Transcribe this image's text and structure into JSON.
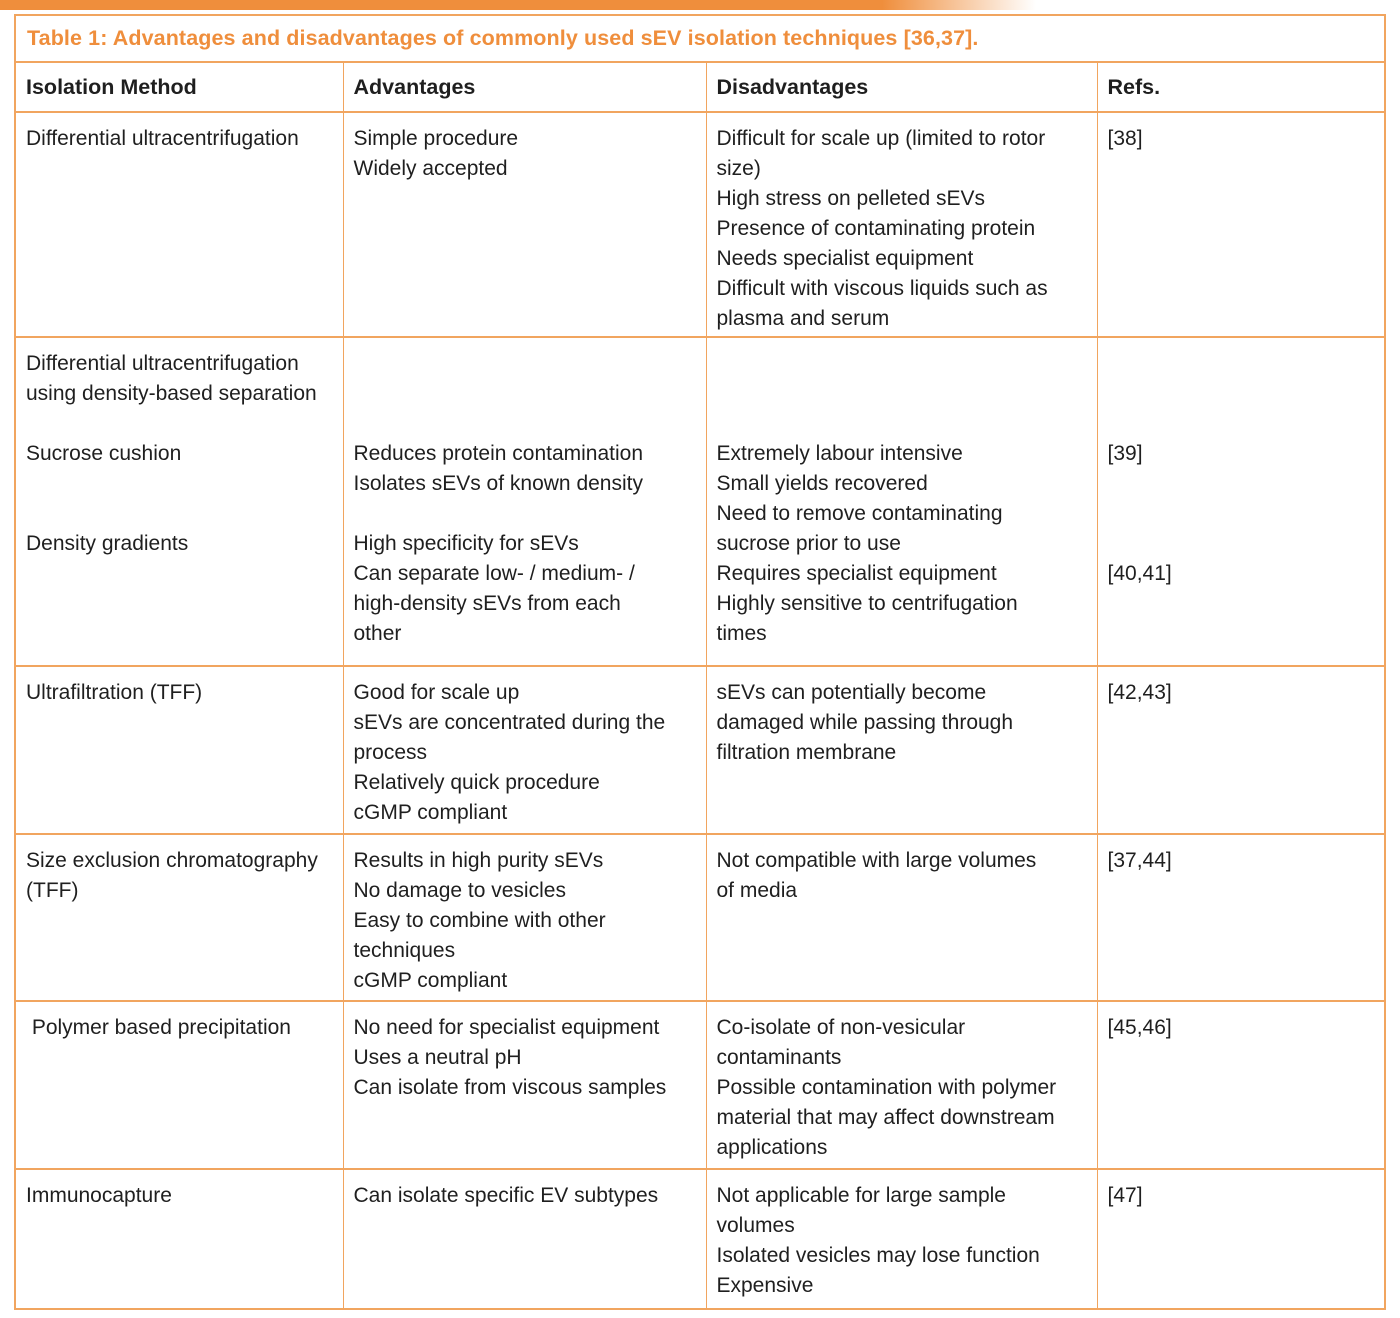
{
  "page": {
    "accent_color": "#EF8E3C",
    "border_color": "#F1A55F",
    "background": "#ffffff"
  },
  "table": {
    "title": "Table 1: Advantages and disadvantages of commonly used sEV isolation techniques [36,37].",
    "columns": [
      "Isolation Method",
      "Advantages",
      "Disadvantages",
      "Refs."
    ],
    "rows": [
      {
        "id": "differential-ultracentrifugation",
        "method": [
          "Differential ultracentrifugation"
        ],
        "advantages": [
          "Simple procedure",
          "Widely accepted"
        ],
        "disadvantages": [
          "Difficult for scale up (limited to rotor",
          "size)",
          "High stress on pelleted sEVs",
          "Presence of contaminating protein",
          "Needs specialist equipment",
          "Difficult with viscous liquids such as",
          "plasma and serum"
        ],
        "refs": [
          "[38]"
        ]
      },
      {
        "id": "density-based-separation",
        "method": [
          "Differential ultracentrifugation",
          "using density-based separation",
          "",
          "Sucrose cushion",
          "",
          "",
          "Density gradients"
        ],
        "advantages": [
          "",
          "",
          "",
          "Reduces protein contamination",
          "Isolates sEVs of known density",
          "",
          "High specificity for sEVs",
          "Can separate low- / medium- /",
          "high-density sEVs from each",
          "other"
        ],
        "disadvantages": [
          "",
          "",
          "",
          "Extremely labour intensive",
          "Small yields recovered",
          "Need to remove contaminating",
          "sucrose prior to use",
          "Requires specialist equipment",
          "Highly sensitive to centrifugation",
          "times"
        ],
        "refs": [
          "",
          "",
          "",
          "[39]",
          "",
          "",
          "",
          "[40,41]"
        ]
      },
      {
        "id": "ultrafiltration-tff",
        "method": [
          "Ultrafiltration (TFF)"
        ],
        "advantages": [
          "Good for scale up",
          "sEVs are concentrated during the",
          "process",
          "Relatively quick procedure",
          "cGMP compliant"
        ],
        "disadvantages": [
          "sEVs can potentially become",
          "damaged while passing through",
          "filtration membrane"
        ],
        "refs": [
          "[42,43]"
        ]
      },
      {
        "id": "size-exclusion-chromatography",
        "method": [
          "Size exclusion chromatography",
          "(TFF)"
        ],
        "advantages": [
          "Results in high purity sEVs",
          "No damage to vesicles",
          "Easy to combine with other",
          "techniques",
          "cGMP compliant"
        ],
        "disadvantages": [
          "Not compatible with large volumes",
          "of media"
        ],
        "refs": [
          "[37,44]"
        ]
      },
      {
        "id": "polymer-based-precipitation",
        "method": [
          " Polymer based precipitation"
        ],
        "advantages": [
          "No need for specialist equipment",
          "Uses a neutral pH",
          "Can isolate from viscous samples"
        ],
        "disadvantages": [
          "Co-isolate of non-vesicular",
          "contaminants",
          "Possible contamination with polymer",
          "material that may affect downstream",
          "applications"
        ],
        "refs": [
          "[45,46]"
        ]
      },
      {
        "id": "immunocapture",
        "method": [
          "Immunocapture"
        ],
        "advantages": [
          "Can isolate specific EV subtypes"
        ],
        "disadvantages": [
          "Not applicable for large sample",
          "volumes",
          "Isolated vesicles may lose function",
          "Expensive"
        ],
        "refs": [
          "[47]"
        ]
      }
    ]
  }
}
